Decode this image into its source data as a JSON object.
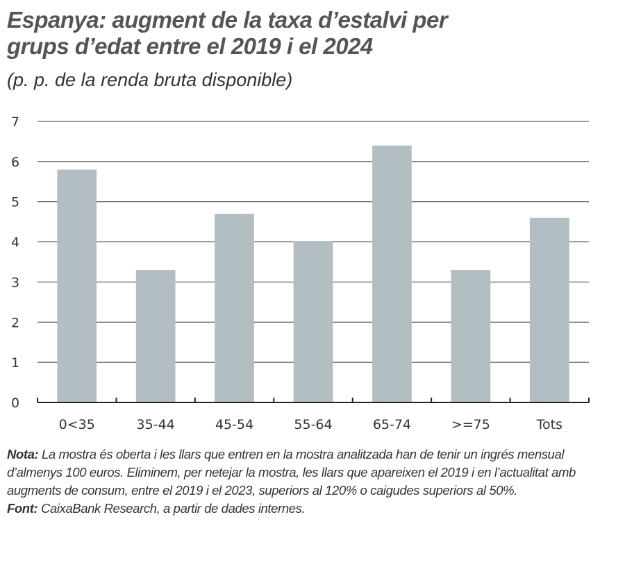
{
  "chart_data": {
    "type": "bar",
    "title": "Espanya: augment de la taxa d’estalvi per grups d’edat entre el 2019 i el 2024",
    "subtitle": "(p. p. de la renda bruta disponible)",
    "categories": [
      "0<35",
      "35-44",
      "45-54",
      "55-64",
      "65-74",
      ">=75",
      "Tots"
    ],
    "values": [
      5.8,
      3.3,
      4.7,
      4.0,
      6.4,
      3.3,
      4.6
    ],
    "ylim": [
      0,
      7
    ],
    "yticks": [
      "0",
      "1",
      "2",
      "3",
      "4",
      "5",
      "6",
      "7"
    ],
    "grid": true,
    "bar_color": "#b2bec1",
    "xlabel": "",
    "ylabel": ""
  },
  "notes": {
    "nota_label": "Nota:",
    "nota_text": "La mostra és oberta i les llars que entren en la mostra analitzada han de tenir un ingrés mensual d’almenys 100 euros. Eliminem, per netejar la mostra, les llars que apareixen el 2019 i en l’actualitat amb augments de consum, entre el 2019 i el 2023, superiors al 120% o caigudes superiors al 50%.",
    "font_label": "Font:",
    "font_text": "CaixaBank Research, a partir de dades internes."
  }
}
